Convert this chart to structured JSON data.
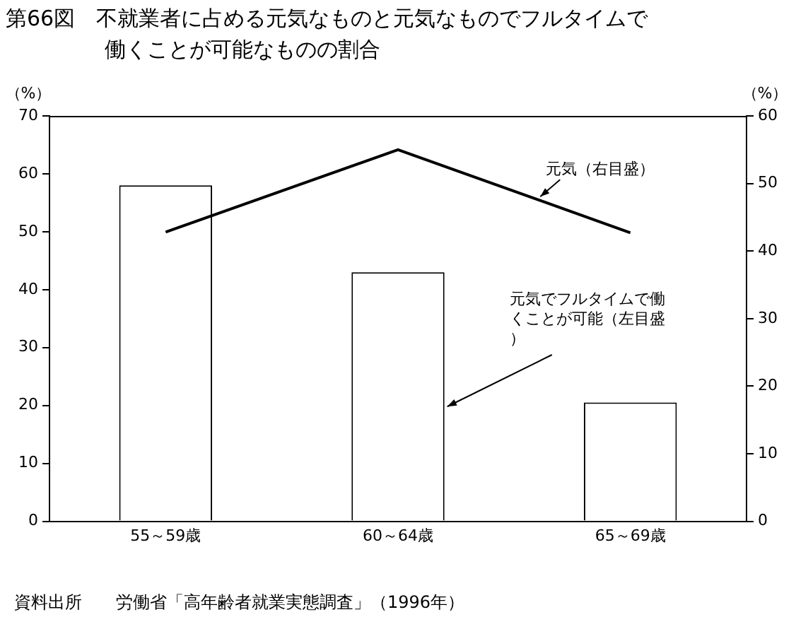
{
  "chart_data": {
    "type": "bar",
    "title": "第66図　不就業者に占める元気なものと元気なものでフルタイムで働くことが可能なものの割合",
    "categories": [
      "55～59歳",
      "60～64歳",
      "65～69歳"
    ],
    "series": [
      {
        "name": "元気でフルタイムで働くことが可能（左目盛）",
        "color": "#ffffff",
        "values": [
          58,
          43,
          20.5
        ]
      },
      {
        "name": "元気（右目盛）",
        "type": "line",
        "axis": "y2",
        "color": "#000000",
        "values": [
          42.8,
          55,
          42.7
        ]
      }
    ],
    "ylabel": "（%）",
    "y2label": "（%）",
    "ylim": [
      0,
      70
    ],
    "yticks": [
      0,
      10,
      20,
      30,
      40,
      50,
      60,
      70
    ],
    "y2lim": [
      0,
      60
    ],
    "y2ticks": [
      0,
      10,
      20,
      30,
      40,
      50,
      60
    ],
    "grid": false,
    "legend": false,
    "marker": "none",
    "line_style": "solid",
    "annotations": [
      "資料出所　　労働省「高年齢者就業実態調査」（1996年）"
    ]
  }
}
